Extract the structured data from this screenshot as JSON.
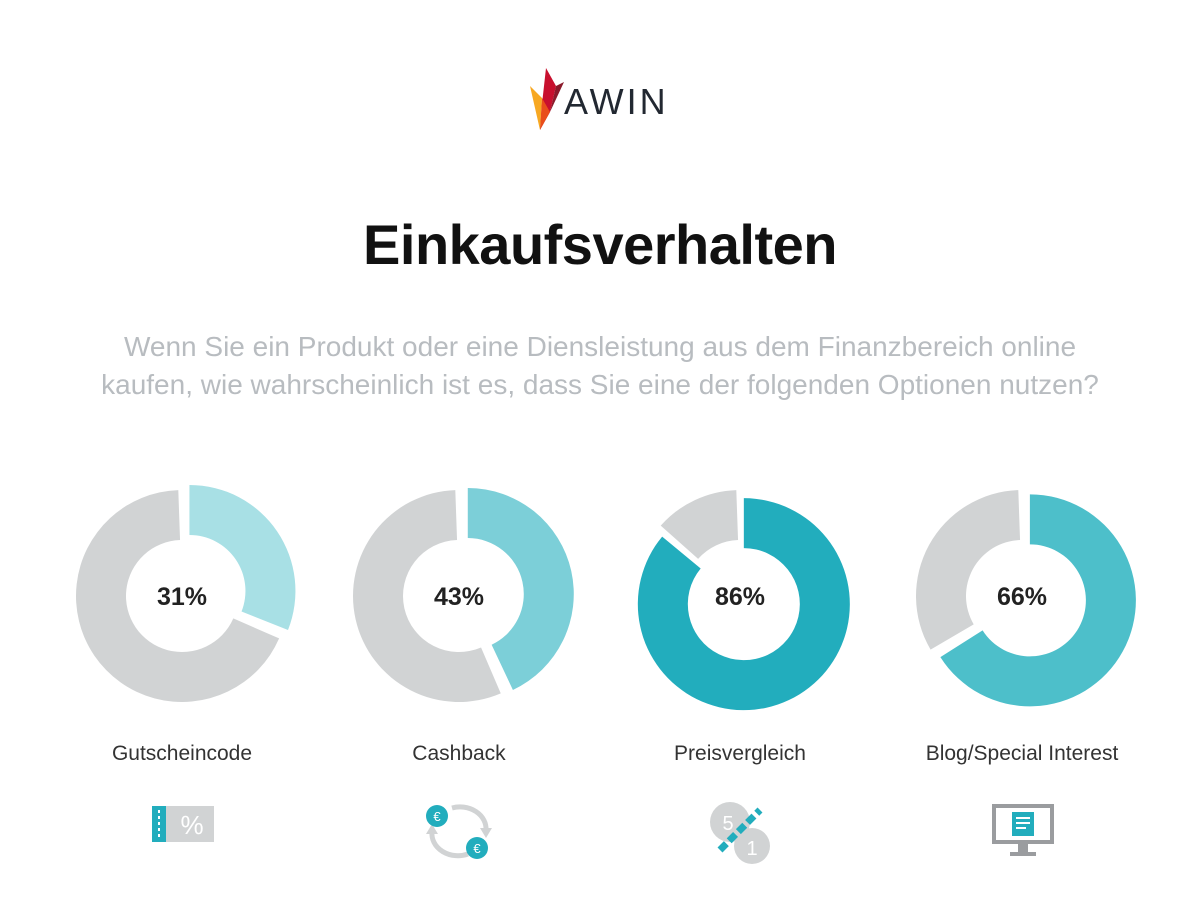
{
  "brand": {
    "name": "AWIN",
    "logo_colors": [
      "#f7a822",
      "#e94e1b",
      "#c8102e",
      "#8b1a2b"
    ]
  },
  "header": {
    "title": "Einkaufsverhalten",
    "subtitle_line1": "Wenn Sie ein Produkt oder eine Diensleistung aus dem Finanzbereich online",
    "subtitle_line2": "kaufen, wie wahrscheinlich ist es, dass Sie eine der folgenden Optionen nutzen?"
  },
  "chart_data": {
    "type": "pie",
    "variant": "donut",
    "title": "Einkaufsverhalten",
    "unit": "%",
    "remainder_color": "#d1d3d4",
    "categories": [
      "Gutscheincode",
      "Cashback",
      "Preisvergleich",
      "Blog/Special Interest"
    ],
    "values": [
      31,
      43,
      86,
      66
    ],
    "labels": [
      "31%",
      "43%",
      "86%",
      "66%"
    ],
    "colors": [
      "#a8e0e5",
      "#7ccfd8",
      "#22adbd",
      "#4dbfca"
    ]
  },
  "icons": [
    {
      "name": "coupon-icon",
      "symbol": "%"
    },
    {
      "name": "cashback-icon",
      "symbol": "€"
    },
    {
      "name": "price-comparison-icon",
      "numbers": [
        "5",
        "1"
      ]
    },
    {
      "name": "blog-monitor-icon"
    }
  ],
  "icon_colors": {
    "teal": "#22adbd",
    "gray": "#d1d3d4",
    "dark_gray": "#9a9c9f"
  }
}
